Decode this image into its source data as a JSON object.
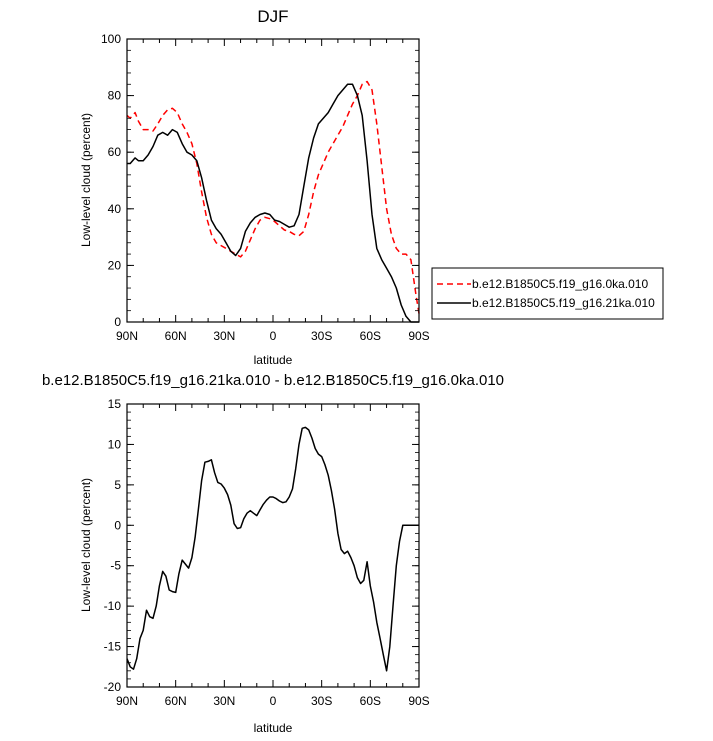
{
  "chart_data": [
    {
      "type": "line",
      "title": "DJF",
      "xlabel": "latitude",
      "ylabel": "Low-level cloud (percent)",
      "xlim": [
        90,
        -90
      ],
      "ylim": [
        0,
        100
      ],
      "xticks": [
        90,
        60,
        30,
        0,
        -30,
        -60,
        -90
      ],
      "xtick_labels": [
        "90N",
        "60N",
        "30N",
        "0",
        "30S",
        "60S",
        "90S"
      ],
      "yticks": [
        0,
        20,
        40,
        60,
        80,
        100
      ],
      "ytick_labels": [
        "0",
        "20",
        "40",
        "60",
        "80",
        "100"
      ],
      "legend_position": "outside right",
      "series": [
        {
          "name": "b.e12.B1850C5.f19_g16.0ka.010",
          "color": "#ff0000",
          "style": "dashed",
          "x": [
            90,
            88,
            85,
            83,
            80,
            77,
            74,
            71,
            68,
            65,
            62,
            59,
            56,
            53,
            50,
            47,
            44,
            41,
            38,
            35,
            32,
            29,
            26,
            23,
            20,
            17,
            14,
            11,
            8,
            5,
            2,
            -1,
            -4,
            -7,
            -10,
            -13,
            -16,
            -19,
            -22,
            -25,
            -28,
            -31,
            -34,
            -37,
            -40,
            -43,
            -46,
            -49,
            -52,
            -55,
            -58,
            -61,
            -64,
            -67,
            -70,
            -73,
            -76,
            -79,
            -82,
            -85,
            -88,
            -90
          ],
          "y": [
            73,
            72,
            74,
            71,
            68,
            68,
            67.5,
            70,
            73,
            75,
            75.5,
            74,
            70,
            67,
            63,
            56,
            46,
            37,
            31,
            28,
            27,
            26,
            25,
            24,
            23,
            25,
            29,
            33,
            36,
            37,
            36.5,
            35.5,
            34,
            32.5,
            32,
            31,
            30.5,
            32,
            38,
            46,
            52,
            56,
            60,
            63,
            66,
            69,
            73,
            77,
            80,
            84,
            85,
            82,
            70,
            55,
            40,
            31,
            26,
            24,
            24,
            22,
            10,
            3
          ]
        },
        {
          "name": "b.e12.B1850C5.f19_g16.21ka.010",
          "color": "#000000",
          "style": "solid",
          "x": [
            90,
            88,
            85,
            83,
            80,
            77,
            74,
            71,
            68,
            65,
            62,
            59,
            56,
            53,
            50,
            47,
            44,
            41,
            38,
            35,
            32,
            29,
            26,
            23,
            20,
            17,
            14,
            11,
            8,
            5,
            2,
            -1,
            -4,
            -7,
            -10,
            -13,
            -16,
            -19,
            -22,
            -25,
            -28,
            -31,
            -34,
            -37,
            -40,
            -43,
            -46,
            -49,
            -52,
            -55,
            -58,
            -61,
            -64,
            -67,
            -70,
            -73,
            -76,
            -79,
            -82,
            -85,
            -88,
            -90
          ],
          "y": [
            56,
            56,
            58,
            57,
            57,
            59,
            62,
            66,
            67,
            66,
            68,
            67,
            63,
            60,
            59,
            57,
            51,
            43,
            36,
            33,
            31,
            28,
            25,
            23.5,
            26,
            32,
            35,
            37,
            38,
            38.5,
            38,
            36,
            35.5,
            34.5,
            33.5,
            34,
            38,
            48,
            58,
            65,
            70,
            72,
            74,
            77,
            80,
            82,
            84,
            84,
            80,
            73,
            57,
            38,
            26,
            22,
            19,
            16,
            12,
            6,
            2,
            0,
            0,
            0
          ]
        }
      ]
    },
    {
      "type": "line",
      "title": "b.e12.B1850C5.f19_g16.21ka.010 - b.e12.B1850C5.f19_g16.0ka.010",
      "xlabel": "latitude",
      "ylabel": "Low-level cloud (percent)",
      "xlim": [
        90,
        -90
      ],
      "ylim": [
        -20,
        15
      ],
      "xticks": [
        90,
        60,
        30,
        0,
        -30,
        -60,
        -90
      ],
      "xtick_labels": [
        "90N",
        "60N",
        "30N",
        "0",
        "30S",
        "60S",
        "90S"
      ],
      "yticks": [
        -20,
        -15,
        -10,
        -5,
        0,
        5,
        10,
        15
      ],
      "ytick_labels": [
        "-20",
        "-15",
        "-10",
        "-5",
        "0",
        "5",
        "10",
        "15"
      ],
      "series": [
        {
          "color": "#000000",
          "style": "solid",
          "x": [
            90,
            88,
            86,
            84,
            82,
            80,
            78,
            76,
            74,
            72,
            70,
            68,
            66,
            64,
            62,
            60,
            58,
            56,
            54,
            52,
            50,
            48,
            46,
            44,
            42,
            40,
            38,
            36,
            34,
            32,
            30,
            28,
            26,
            24,
            22,
            20,
            18,
            16,
            14,
            12,
            10,
            8,
            6,
            4,
            2,
            0,
            -2,
            -4,
            -6,
            -8,
            -10,
            -12,
            -14,
            -16,
            -18,
            -20,
            -22,
            -24,
            -26,
            -28,
            -30,
            -32,
            -34,
            -36,
            -38,
            -40,
            -42,
            -44,
            -46,
            -48,
            -50,
            -52,
            -54,
            -56,
            -58,
            -60,
            -62,
            -64,
            -66,
            -68,
            -70,
            -72,
            -74,
            -76,
            -78,
            -80,
            -82,
            -84,
            -86,
            -88,
            -90
          ],
          "y": [
            -16.5,
            -17.5,
            -17.8,
            -16.5,
            -14,
            -13,
            -10.5,
            -11.3,
            -11.5,
            -10,
            -7.5,
            -5.7,
            -6.3,
            -8,
            -8.2,
            -8.3,
            -6,
            -4.3,
            -4.8,
            -5.3,
            -4,
            -1.5,
            2,
            5.5,
            7.8,
            7.9,
            8.1,
            6.5,
            5.3,
            5.1,
            4.6,
            3.8,
            2.5,
            0.2,
            -0.4,
            -0.3,
            0.8,
            1.5,
            1.8,
            1.5,
            1.2,
            1.9,
            2.6,
            3.1,
            3.5,
            3.5,
            3.3,
            3.0,
            2.8,
            2.9,
            3.5,
            4.5,
            7.0,
            10.0,
            12.0,
            12.1,
            11.8,
            10.8,
            9.5,
            8.8,
            8.5,
            7.5,
            6.2,
            4.3,
            2.0,
            -1.0,
            -3.0,
            -3.5,
            -3.2,
            -4.0,
            -5.0,
            -6.5,
            -7.2,
            -6.8,
            -4.5,
            -7.5,
            -9.5,
            -12.0,
            -14.0,
            -16.0,
            -18.0,
            -15.0,
            -10.0,
            -5.0,
            -2.0,
            0,
            0,
            0,
            0,
            0,
            0
          ]
        }
      ]
    }
  ]
}
